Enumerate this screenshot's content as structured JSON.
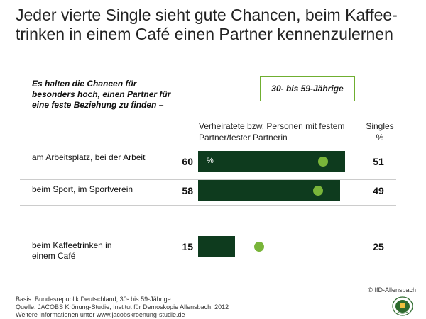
{
  "title": "Jeder vierte Single sieht gute Chancen, beim Kaffee-trinken in einem Café einen Partner kennenzulernen",
  "question": "Es halten die Chancen für besonders hoch, einen Partner für eine feste Beziehung zu finden –",
  "age_group": "30- bis 59-Jährige",
  "column_married": "Verheiratete bzw. Personen mit festem Partner/fester Partnerin",
  "column_singles": "Singles",
  "column_singles_unit": "%",
  "unit_in_bar": "%",
  "colors": {
    "bar": "#0e3b1e",
    "dot": "#79b53a",
    "box_border": "#6fae30"
  },
  "chart_data": {
    "type": "bar",
    "orientation": "horizontal",
    "categories": [
      "am Arbeitsplatz, bei der Arbeit",
      "beim Sport, im Sportverein",
      "beim Kaffeetrinken in einem Café"
    ],
    "series": [
      {
        "name": "Verheiratete bzw. Personen mit festem Partner/fester Partnerin",
        "values": [
          60,
          58,
          15
        ],
        "mark": "bar"
      },
      {
        "name": "Singles",
        "values": [
          51,
          49,
          25
        ],
        "mark": "dot"
      }
    ],
    "unit": "%"
  },
  "copyright": "© IfD-Allensbach",
  "footer": {
    "basis": "Basis: Bundesrepublik Deutschland, 30- bis 59-Jährige",
    "source": "Quelle: JACOBS Krönung-Studie, Institut für Demoskopie Allensbach, 2012",
    "more": "Weitere Informationen unter www.jacobskroenung-studie.de"
  },
  "logo_icon": "allensbach-seal-icon"
}
